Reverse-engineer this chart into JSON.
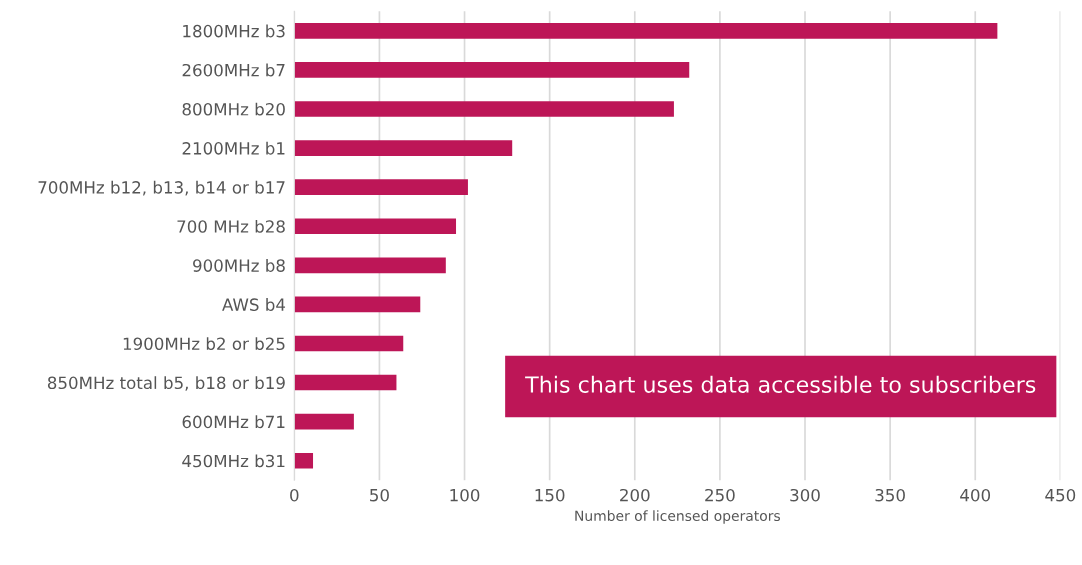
{
  "chart_data": {
    "type": "bar",
    "orientation": "horizontal",
    "xlabel": "Number of licensed operators",
    "categories": [
      "1800MHz b3",
      "2600MHz b7",
      "800MHz b20",
      "2100MHz b1",
      "700MHz b12, b13, b14 or b17",
      "700 MHz b28",
      "900MHz b8",
      "AWS b4",
      "1900MHz b2 or b25",
      "850MHz total b5, b18 or b19",
      "600MHz b71",
      "450MHz b31"
    ],
    "values": [
      413,
      232,
      223,
      128,
      102,
      95,
      89,
      74,
      64,
      60,
      35,
      11
    ],
    "color": "#bd1657",
    "xlim": [
      0,
      450
    ],
    "xticks": [
      0,
      50,
      100,
      150,
      200,
      250,
      300,
      350,
      400,
      450
    ],
    "grid": "x",
    "annotations": [
      "This chart uses data accessible to subscribers"
    ]
  }
}
